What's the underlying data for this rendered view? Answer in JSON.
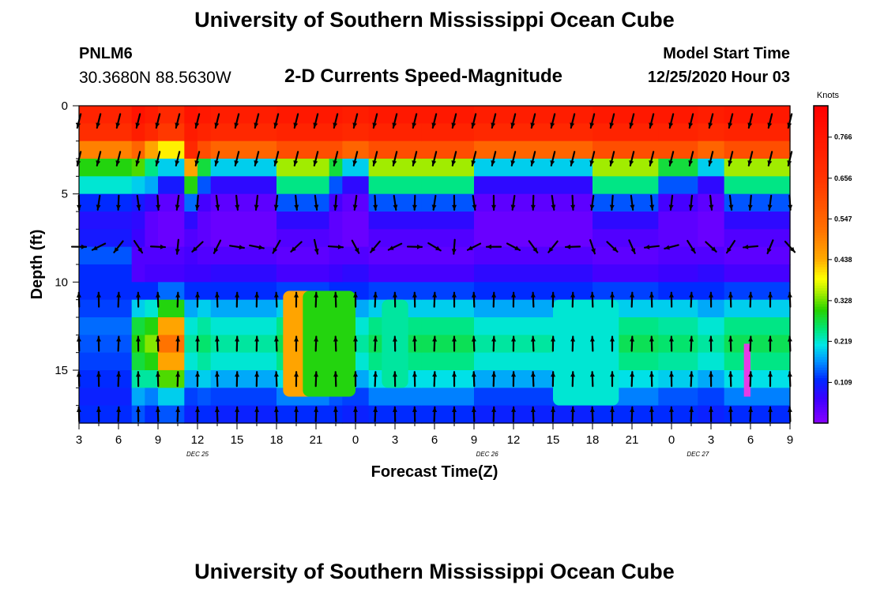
{
  "header": {
    "title": "University of Southern Mississippi Ocean Cube",
    "station_id": "PNLM6",
    "station_coords": "30.3680N 88.5630W",
    "plot_title": "2-D Currents Speed-Magnitude",
    "model_start_label": "Model Start Time",
    "model_start_value": "12/25/2020 Hour 03"
  },
  "footer": {
    "title": "University of Southern Mississippi Ocean Cube"
  },
  "chart_data": {
    "type": "heatmap",
    "xlabel": "Forecast Time(Z)",
    "ylabel": "Depth (ft)",
    "x_start_hour": 3,
    "x_step_hours": 3,
    "x_ticks": [
      "3",
      "6",
      "9",
      "12",
      "15",
      "18",
      "21",
      "0",
      "3",
      "6",
      "9",
      "12",
      "15",
      "18",
      "21",
      "0",
      "3",
      "6",
      "9"
    ],
    "date_labels": [
      {
        "label": "DEC 25",
        "at_hour": 12
      },
      {
        "label": "DEC 26",
        "at_hour": 34
      },
      {
        "label": "DEC 27",
        "at_hour": 50
      }
    ],
    "y_ticks": [
      "0",
      "5",
      "10",
      "15"
    ],
    "ylim": [
      0,
      18
    ],
    "colorbar": {
      "unit": "Knots",
      "min": 0,
      "max": 0.85,
      "ticks": [
        "0.766",
        "0.656",
        "0.547",
        "0.438",
        "0.328",
        "0.219",
        "0.109"
      ]
    },
    "depth_levels_ft": [
      0.5,
      1.5,
      2.5,
      3.5,
      4.5,
      5.5,
      6.5,
      7.5,
      8.5,
      9.5,
      10.5,
      11.5,
      12.5,
      13.5,
      14.5,
      15.5,
      16.5,
      17.5
    ],
    "speed_profiles_knots": {
      "1": [
        0.72,
        0.68,
        0.5,
        0.3,
        0.22,
        0.12,
        0.09,
        0.1,
        0.14,
        0.12,
        0.12,
        0.13,
        0.15,
        0.14,
        0.13,
        0.12,
        0.11,
        0.12
      ],
      "2": [
        0.78,
        0.74,
        0.55,
        0.32,
        0.2,
        0.1,
        0.08,
        0.07,
        0.05,
        0.05,
        0.12,
        0.2,
        0.28,
        0.3,
        0.28,
        0.24,
        0.18,
        0.14
      ],
      "3": [
        0.75,
        0.7,
        0.45,
        0.25,
        0.18,
        0.08,
        0.04,
        0.04,
        0.05,
        0.06,
        0.12,
        0.22,
        0.3,
        0.34,
        0.3,
        0.24,
        0.16,
        0.12
      ],
      "4": [
        0.7,
        0.65,
        0.4,
        0.2,
        0.1,
        0.04,
        0.03,
        0.03,
        0.05,
        0.06,
        0.15,
        0.3,
        0.45,
        0.52,
        0.45,
        0.32,
        0.2,
        0.14
      ],
      "5": [
        0.78,
        0.75,
        0.7,
        0.45,
        0.3,
        0.15,
        0.08,
        0.05,
        0.06,
        0.07,
        0.12,
        0.18,
        0.22,
        0.24,
        0.22,
        0.18,
        0.13,
        0.11
      ],
      "6": [
        0.76,
        0.72,
        0.6,
        0.28,
        0.14,
        0.06,
        0.04,
        0.04,
        0.05,
        0.07,
        0.12,
        0.2,
        0.24,
        0.26,
        0.24,
        0.2,
        0.14,
        0.12
      ],
      "7": [
        0.74,
        0.7,
        0.55,
        0.2,
        0.08,
        0.04,
        0.03,
        0.03,
        0.05,
        0.08,
        0.12,
        0.18,
        0.22,
        0.24,
        0.22,
        0.18,
        0.13,
        0.11
      ],
      "8": [
        0.76,
        0.72,
        0.6,
        0.35,
        0.25,
        0.14,
        0.08,
        0.05,
        0.04,
        0.06,
        0.13,
        0.2,
        0.25,
        0.27,
        0.25,
        0.21,
        0.16,
        0.12
      ]
    },
    "segment_edges_hours": [
      3,
      7,
      8,
      9,
      11,
      12,
      13,
      18,
      22,
      23,
      25,
      29,
      33,
      42,
      47,
      50,
      52,
      54,
      57
    ],
    "segment_profiles": [
      "1",
      "2",
      "3",
      "4",
      "5",
      "6",
      "7",
      "8",
      "6",
      "7",
      "8",
      "8",
      "7",
      "8",
      "6",
      "7",
      "8",
      "8"
    ],
    "warm_patches": [
      {
        "hour_range": [
          18.5,
          22
        ],
        "depth_range": [
          10.5,
          16.5
        ],
        "speed": 0.45
      },
      {
        "hour_range": [
          20,
          24
        ],
        "depth_range": [
          10.5,
          16.5
        ],
        "speed": 0.3
      },
      {
        "hour_range": [
          26,
          28
        ],
        "depth_range": [
          11,
          16
        ],
        "speed": 0.24
      },
      {
        "hour_range": [
          39,
          44
        ],
        "depth_range": [
          11,
          17
        ],
        "speed": 0.22
      },
      {
        "hour_range": [
          53.5,
          54
        ],
        "depth_range": [
          13.5,
          16.5
        ],
        "speed": 0.0
      }
    ],
    "vector_field": {
      "time_hours": [
        3,
        4.5,
        6,
        7.5,
        9,
        10.5,
        12,
        13.5,
        15,
        16.5,
        18,
        19.5,
        21,
        22.5,
        24,
        25.5,
        27,
        28.5,
        30,
        31.5,
        33,
        34.5,
        36,
        37.5,
        39,
        40.5,
        42,
        43.5,
        45,
        46.5,
        48,
        49.5,
        51,
        52.5,
        54,
        55.5,
        57
      ],
      "depth_rows_ft": [
        0.5,
        3,
        5.5,
        8,
        11,
        13.5,
        15.5,
        17.5
      ],
      "note": "arrows depict current direction at each grid point"
    }
  }
}
